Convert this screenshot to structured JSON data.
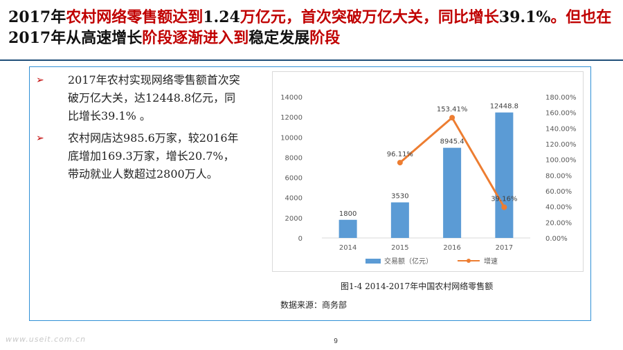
{
  "slide": {
    "title_parts": [
      {
        "text": "2017年",
        "red": false
      },
      {
        "text": "农村网络零售额达到",
        "red": true
      },
      {
        "text": "1.24",
        "red": false
      },
      {
        "text": "万亿元，首次突破万亿大关，同比增长",
        "red": true
      },
      {
        "text": "39.1%",
        "red": false
      },
      {
        "text": "。但也在",
        "red": true
      },
      {
        "text": "2017年从",
        "red": false
      },
      {
        "text": "高速增长",
        "red": false
      },
      {
        "text": "阶段逐渐进入到",
        "red": true
      },
      {
        "text": "稳定发展",
        "red": false
      },
      {
        "text": "阶段",
        "red": true
      }
    ],
    "bullet_marker": "➢",
    "bullets": [
      "2017年农村实现网络零售额首次突破万亿大关，达12448.8亿元，同比增长39.1% 。",
      "农村网店达985.6万家，较2016年底增加169.3万家，增长20.7%，带动就业人数超过2800万人。"
    ],
    "caption": "图1-4  2014-2017年中国农村网络零售额",
    "source": "数据来源：商务部",
    "watermark": "www.useit.com.cn",
    "page_number": "9"
  },
  "chart_data": {
    "type": "bar+line",
    "categories": [
      "2014",
      "2015",
      "2016",
      "2017"
    ],
    "series": [
      {
        "name": "交易额（亿元）",
        "kind": "bar",
        "axis": "left",
        "values": [
          1800,
          3530,
          8945.4,
          12448.8
        ],
        "labels": [
          "1800",
          "3530",
          "8945.4",
          "12448.8"
        ],
        "color": "#5b9bd5"
      },
      {
        "name": "增速",
        "kind": "line",
        "axis": "right",
        "values": [
          null,
          96.11,
          153.41,
          39.16
        ],
        "labels": [
          "",
          "96.11%",
          "153.41%",
          "39.16%"
        ],
        "color": "#ed7d31"
      }
    ],
    "y_left": {
      "min": 0,
      "max": 14000,
      "step": 2000,
      "ticks": [
        "0",
        "2000",
        "4000",
        "6000",
        "8000",
        "10000",
        "12000",
        "14000"
      ]
    },
    "y_right": {
      "min": 0,
      "max": 180,
      "step": 20,
      "ticks": [
        "0.00%",
        "20.00%",
        "40.00%",
        "60.00%",
        "80.00%",
        "100.00%",
        "120.00%",
        "140.00%",
        "160.00%",
        "180.00%"
      ]
    },
    "grid": false,
    "legend_position": "bottom"
  }
}
